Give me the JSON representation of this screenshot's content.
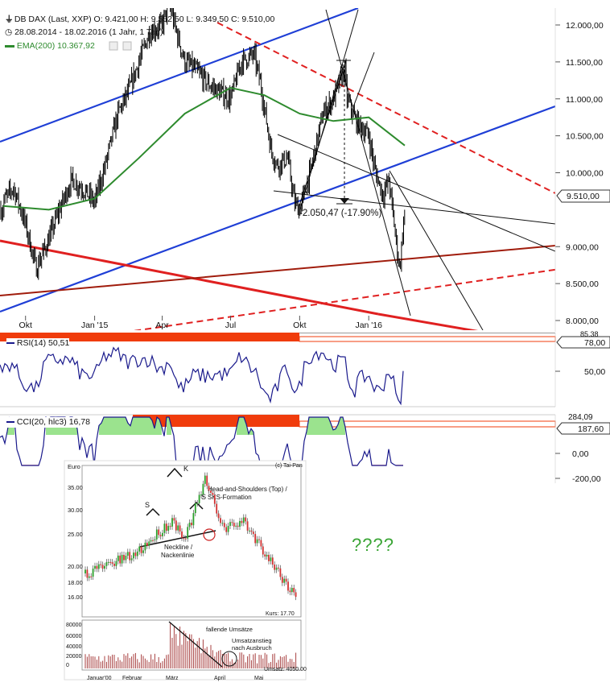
{
  "header": {
    "line1": "DB DAX (Last, XXP)  O: 9.421,00  H: 9.552,50  L: 9.349,50  C: 9.510,00",
    "line2": "28.08.2014 - 18.02.2016 (1 Jahr, 1 Tag)",
    "ema_name": "EMA(200)",
    "ema_value": "10.367,92"
  },
  "annotation": "-2.050,47 (-17.90%)",
  "price_badge": "9.510,00",
  "rsi": {
    "name": "RSI(14)",
    "value": "50,51",
    "badge": "78,00",
    "badge_hidden": "85,38",
    "axis_mid": "50,00"
  },
  "cci": {
    "name": "CCI(20, hlc3)",
    "value": "16,78",
    "badge_top": "284,09",
    "badge": "187,60",
    "axis": [
      "0,00",
      "-200,00"
    ]
  },
  "question_marks": "????",
  "inset": {
    "currency": "Euro",
    "source": "(c) Tai-Pan",
    "title_line1": "Head-and-Shoulders (Top) /",
    "title_line2": "SKS-Formation",
    "label_s": "S",
    "label_k": "K",
    "neckline_line1": "Neckline /",
    "neckline_line2": "Nackenlinie",
    "kurs": "Kurs: 17.70",
    "umsatz": "Umsatz: 4050.00",
    "falling": "fallende Umsätze",
    "rise_line1": "Umsatzanstieg",
    "rise_line2": "nach Ausbruch",
    "yticks": [
      "35.00",
      "30.00",
      "25.00",
      "20.00",
      "18.00",
      "16.00"
    ],
    "vticks": [
      "80000",
      "60000",
      "40000",
      "20000",
      "0"
    ],
    "months": [
      "Januar'00",
      "Februar",
      "März",
      "April",
      "Mai"
    ]
  },
  "colors": {
    "price": "#000000",
    "ema": "#2e8b2e",
    "trend_blue": "#1f3fd6",
    "trend_red": "#e02020",
    "trend_darkred": "#a01c0c",
    "indicator": "#1a1a8c",
    "overbought_bar": "#f03c0c",
    "cci_pos_fill": "#9be38e",
    "cci_neg_fill": "#f1a6ae"
  },
  "chart_data": {
    "type": "line",
    "subtype": "ohlc-bars",
    "series": [
      {
        "name": "DB DAX",
        "x": [
          "2014-09-01",
          "2014-09-15",
          "2014-10-01",
          "2014-10-15",
          "2014-11-01",
          "2014-11-15",
          "2014-12-01",
          "2014-12-15",
          "2015-01-01",
          "2015-01-15",
          "2015-02-01",
          "2015-02-15",
          "2015-03-01",
          "2015-03-15",
          "2015-04-01",
          "2015-04-10",
          "2015-04-20",
          "2015-05-01",
          "2015-05-15",
          "2015-06-01",
          "2015-06-15",
          "2015-07-01",
          "2015-07-15",
          "2015-08-01",
          "2015-08-10",
          "2015-08-24",
          "2015-09-01",
          "2015-09-15",
          "2015-09-24",
          "2015-10-01",
          "2015-10-15",
          "2015-11-01",
          "2015-11-15",
          "2015-11-30",
          "2015-12-03",
          "2015-12-15",
          "2016-01-01",
          "2016-01-10",
          "2016-01-20",
          "2016-01-28",
          "2016-02-05",
          "2016-02-11",
          "2016-02-18"
        ],
        "values": [
          9600,
          9800,
          9300,
          8700,
          9100,
          9500,
          9900,
          9800,
          9600,
          10100,
          10800,
          11100,
          11500,
          11900,
          12000,
          12300,
          11900,
          11500,
          11400,
          11200,
          11100,
          11000,
          11500,
          11600,
          11200,
          10300,
          10100,
          10200,
          9600,
          9500,
          10000,
          10800,
          11000,
          11400,
          11000,
          10700,
          10500,
          10000,
          9700,
          9900,
          9200,
          8700,
          9510
        ]
      },
      {
        "name": "EMA(200)",
        "x": [
          "2014-09-01",
          "2014-11-01",
          "2015-01-01",
          "2015-03-01",
          "2015-05-01",
          "2015-07-01",
          "2015-08-15",
          "2015-10-01",
          "2015-11-15",
          "2016-01-01",
          "2016-02-18"
        ],
        "values": [
          9550,
          9500,
          9650,
          10200,
          10800,
          11150,
          11050,
          10800,
          10700,
          10750,
          10368
        ]
      }
    ],
    "xlabel": "",
    "ylabel": "",
    "xticks": [
      "Okt",
      "Jan '15",
      "Apr",
      "Jul",
      "Okt",
      "Jan '16"
    ],
    "yticks": [
      "12.000,00",
      "11.500,00",
      "11.000,00",
      "10.500,00",
      "10.000,00",
      "9.000,00",
      "8.500,00",
      "8.000,00"
    ],
    "ylim": [
      7950,
      12150
    ],
    "grid": false,
    "legend": "top-left"
  }
}
